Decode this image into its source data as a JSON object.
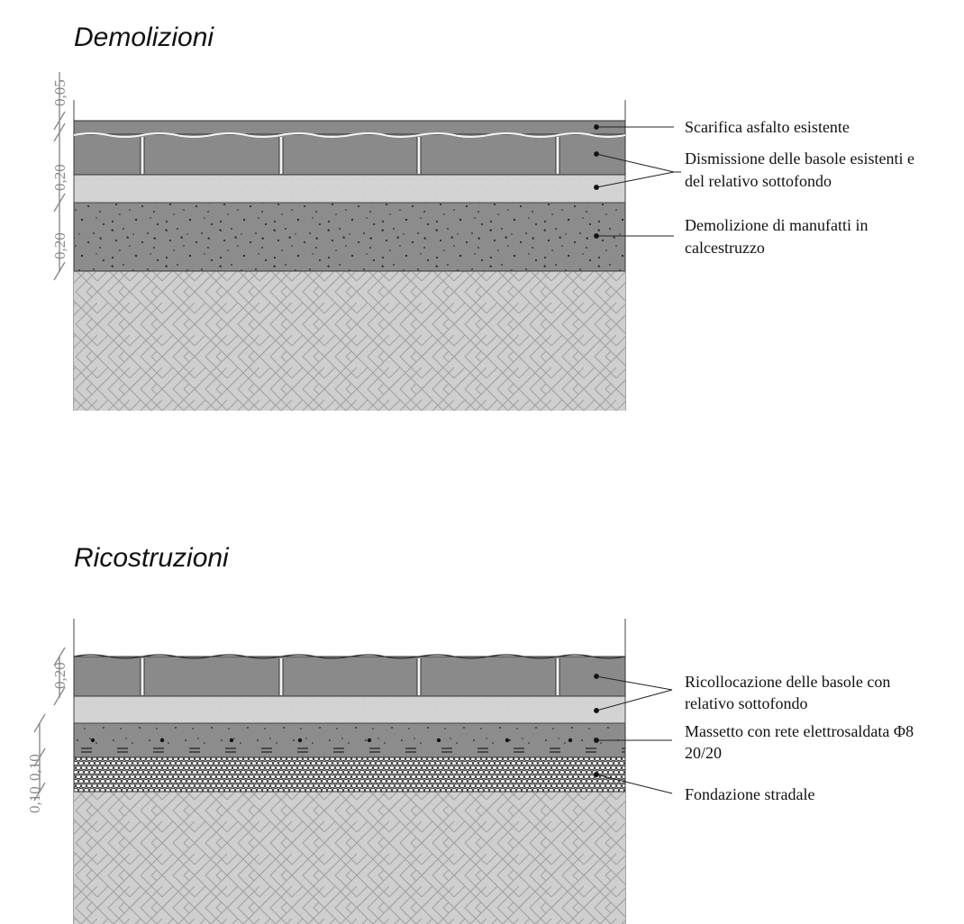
{
  "demolizioni": {
    "title": "Demolizioni",
    "dimensions": [
      "0,05",
      "0,20",
      "0,20"
    ],
    "labels": {
      "asfalto": "Scarifica asfalto esistente",
      "basole_1": "Dismissione delle basole esistenti e",
      "basole_2": "del relativo sottofondo",
      "calcestruzzo_1": "Demolizione di manufatti in",
      "calcestruzzo_2": "calcestruzzo"
    }
  },
  "ricostruzioni": {
    "title": "Ricostruzioni",
    "dimensions": [
      "0,20",
      "0,10",
      "0,10"
    ],
    "labels": {
      "basole_1": "Ricollocazione delle basole con",
      "basole_2": "relativo sottofondo",
      "massetto_1": "Massetto con rete elettrosaldata Φ8",
      "massetto_2": "20/20",
      "fondazione": "Fondazione stradale"
    }
  },
  "colors": {
    "stone": "#8a8a8a",
    "sand": "#d3d3d3",
    "concrete": "#8c8c8c",
    "ground": "#cfcfcf",
    "gravel": "#a9a9a9",
    "dimension": "#8a8a8a"
  }
}
